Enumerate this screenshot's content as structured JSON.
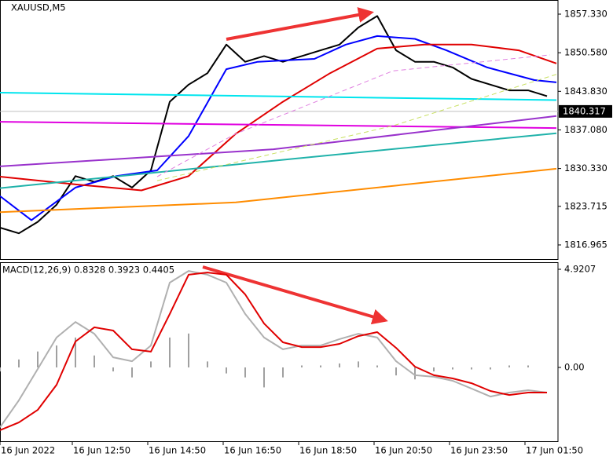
{
  "chart_data": [
    {
      "type": "line",
      "title": "XAUUSD,M5",
      "x": [
        0,
        6,
        12,
        18,
        24,
        30,
        36,
        42,
        48,
        54,
        60,
        66,
        72,
        78,
        84,
        90,
        96,
        102,
        108,
        114,
        120,
        126,
        132,
        138,
        144,
        150,
        156,
        162,
        168,
        174
      ],
      "xlim": [
        0,
        177.5
      ],
      "ylim": [
        1814.49,
        1859.8
      ],
      "yticks": [
        {
          "value": 1857.33,
          "label": "1857.330"
        },
        {
          "value": 1850.58,
          "label": "1850.580"
        },
        {
          "value": 1843.83,
          "label": "1843.830"
        },
        {
          "value": 1837.08,
          "label": "1837.080"
        },
        {
          "value": 1830.33,
          "label": "1830.330"
        },
        1823.715,
        1816.965
      ],
      "last_price": 1840.317,
      "series": [
        {
          "color": "#000000",
          "values": [
            1820,
            1819,
            1821,
            1824,
            1829,
            1828,
            1829,
            1827,
            1830,
            1842,
            1845,
            1847,
            1852,
            1849,
            1850,
            1849,
            1850,
            1851,
            1852,
            1855,
            1857,
            1851,
            1849,
            1849,
            1848,
            1846,
            1845,
            1844,
            1844,
            1843
          ]
        },
        {
          "color": "#0000ff",
          "x": [
            0,
            10,
            24,
            37,
            50,
            60,
            72,
            82,
            100,
            110,
            120,
            132,
            142,
            155,
            170,
            177
          ],
          "values": [
            1825.5,
            1821.3,
            1827,
            1829,
            1830,
            1836,
            1847.7,
            1849,
            1849.5,
            1852,
            1853.5,
            1853,
            1851,
            1848,
            1845.8,
            1845.4
          ]
        },
        {
          "color": "#e00000",
          "x": [
            0,
            25,
            45,
            60,
            75,
            90,
            105,
            120,
            135,
            150,
            165,
            177
          ],
          "values": [
            1828.9,
            1827.5,
            1826.5,
            1829,
            1836.4,
            1842,
            1847,
            1851.3,
            1852,
            1852,
            1851,
            1848.7
          ]
        },
        {
          "color": "#00e5ee",
          "x": [
            0,
            177
          ],
          "values": [
            1843.6,
            1842.3
          ]
        },
        {
          "color": "#e000e0",
          "x": [
            0,
            177
          ],
          "values": [
            1838.5,
            1837.4
          ]
        },
        {
          "color": "#9932cc",
          "x": [
            0,
            87,
            177
          ],
          "values": [
            1830.7,
            1833.7,
            1839.5
          ]
        },
        {
          "color": "#20b2aa",
          "x": [
            0,
            87,
            177
          ],
          "values": [
            1826.9,
            1831.7,
            1836.5
          ]
        },
        {
          "color": "#ff8c00",
          "x": [
            0,
            75,
            177
          ],
          "values": [
            1822.7,
            1824.4,
            1830.3
          ]
        },
        {
          "color": "#e080e0",
          "dash": true,
          "x": [
            50,
            75,
            125,
            175
          ],
          "values": [
            1828.9,
            1836.4,
            1847.4,
            1850.2
          ]
        },
        {
          "color": "#c8e060",
          "dash": true,
          "x": [
            50,
            125,
            177
          ],
          "values": [
            1828.2,
            1837.8,
            1846.8
          ]
        }
      ]
    },
    {
      "type": "line",
      "title": "MACD(12,26,9) 0.8328 0.3923 0.4405",
      "x": [
        0,
        6,
        12,
        18,
        24,
        30,
        36,
        42,
        48,
        54,
        60,
        66,
        72,
        78,
        84,
        90,
        96,
        102,
        108,
        114,
        120,
        126,
        132,
        138,
        144,
        150,
        156,
        162,
        168,
        174
      ],
      "xlim": [
        0,
        177.5
      ],
      "ylim": [
        -3.7,
        5.236
      ],
      "yticks": [
        4.9207,
        {
          "value": 0,
          "label": "0.00"
        }
      ],
      "xticks": [
        {
          "value": 0,
          "label": "16 Jun 2022"
        },
        {
          "value": 23,
          "label": "16 Jun 12:50"
        },
        {
          "value": 47,
          "label": "16 Jun 14:50"
        },
        {
          "value": 71,
          "label": "16 Jun 16:50"
        },
        {
          "value": 95,
          "label": "16 Jun 18:50"
        },
        {
          "value": 119,
          "label": "16 Jun 20:50"
        },
        {
          "value": 143,
          "label": "16 Jun 23:50"
        },
        {
          "value": 167,
          "label": "17 Jun 01:50"
        }
      ],
      "series": [
        {
          "style": "histogram",
          "color": "#a0a0a0",
          "values": [
            -0.2,
            0.4,
            0.8,
            1.1,
            1.5,
            0.6,
            -0.2,
            -0.5,
            0.3,
            1.5,
            1.7,
            0.3,
            -0.3,
            -0.5,
            -1.0,
            -0.5,
            0.1,
            0.1,
            0.2,
            0.3,
            0.1,
            -0.4,
            -0.6,
            -0.2,
            -0.1,
            -0.1,
            -0.1,
            0.1,
            0.1,
            0.0
          ]
        },
        {
          "color": "#b0b0b0",
          "values": [
            -3.0,
            -1.65,
            -0.08,
            1.5,
            2.28,
            1.69,
            0.51,
            0.31,
            1.1,
            4.25,
            4.84,
            4.65,
            4.25,
            2.68,
            1.5,
            0.91,
            1.1,
            1.1,
            1.42,
            1.69,
            1.5,
            0.31,
            -0.39,
            -0.47,
            -0.67,
            -1.06,
            -1.46,
            -1.26,
            -1.14,
            -1.26
          ]
        },
        {
          "color": "#e00000",
          "values": [
            -3.15,
            -2.76,
            -2.13,
            -0.87,
            1.3,
            2.01,
            1.85,
            0.91,
            0.79,
            2.68,
            4.65,
            4.76,
            4.65,
            3.66,
            2.2,
            1.26,
            1.02,
            1.02,
            1.18,
            1.57,
            1.77,
            0.98,
            0.04,
            -0.39,
            -0.55,
            -0.79,
            -1.18,
            -1.38,
            -1.26,
            -1.26
          ]
        }
      ]
    }
  ]
}
